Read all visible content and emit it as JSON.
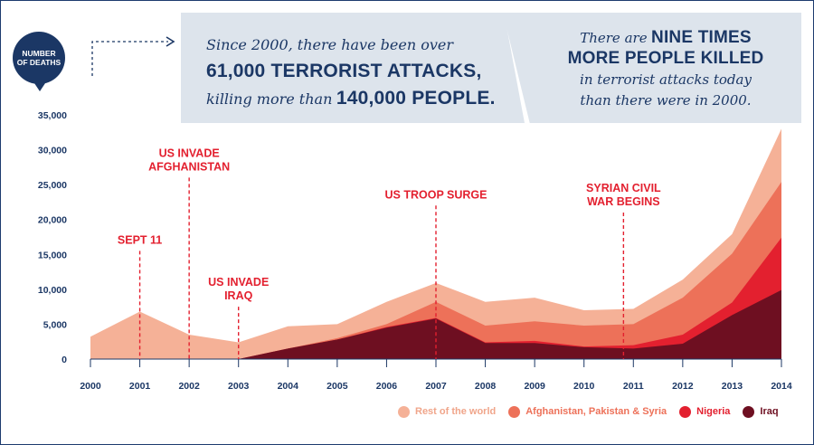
{
  "header": {
    "left_line1": "Since 2000, there have been over",
    "left_line2": "61,000 TERRORIST ATTACKS,",
    "left_line3_italic": "killing more than",
    "left_line3_bold": "140,000 PEOPLE.",
    "right_line1_italic": "There are",
    "right_line1_bold": "NINE TIMES",
    "right_line2": "MORE PEOPLE KILLED",
    "right_line3": "in terrorist attacks today",
    "right_line4": "than there were in 2000."
  },
  "colors": {
    "rest": "#f5b197",
    "afpaksy": "#ed7159",
    "nigeria": "#e3202f",
    "iraq": "#6e0f21",
    "axis": "#1b3765",
    "event": "#e3202f"
  },
  "chart_data": {
    "type": "area",
    "stacked": true,
    "ylabel": "NUMBER OF DEATHS",
    "x": [
      2000,
      2001,
      2002,
      2003,
      2004,
      2005,
      2006,
      2007,
      2008,
      2009,
      2010,
      2011,
      2012,
      2013,
      2014
    ],
    "ylim": [
      0,
      35000
    ],
    "yticks": [
      0,
      5000,
      10000,
      15000,
      20000,
      25000,
      30000,
      35000
    ],
    "ytick_labels": [
      "0",
      "5,000",
      "10,000",
      "15,000",
      "20,000",
      "25,000",
      "30,000",
      "35,000"
    ],
    "series": [
      {
        "name": "Iraq",
        "color": "#6e0f21",
        "values": [
          0,
          0,
          0,
          0,
          1500,
          2800,
          4500,
          5800,
          2300,
          2300,
          1700,
          1500,
          2200,
          6300,
          9900
        ]
      },
      {
        "name": "Nigeria",
        "color": "#e3202f",
        "values": [
          0,
          0,
          0,
          0,
          0,
          0,
          100,
          100,
          100,
          300,
          100,
          500,
          1300,
          1800,
          7500
        ]
      },
      {
        "name": "Afghanistan, Pakistan & Syria",
        "color": "#ed7159",
        "values": [
          0,
          0,
          0,
          0,
          0,
          200,
          400,
          2300,
          2400,
          2800,
          3000,
          3000,
          5300,
          7000,
          8000
        ]
      },
      {
        "name": "Rest of the world",
        "color": "#f5b197",
        "values": [
          3200,
          6800,
          3500,
          2400,
          3200,
          2000,
          3200,
          2700,
          3400,
          3400,
          2200,
          2200,
          2600,
          2800,
          7600
        ]
      }
    ],
    "legend_order": [
      "Rest of the world",
      "Afghanistan, Pakistan & Syria",
      "Nigeria",
      "Iraq"
    ],
    "events": [
      {
        "year": 2001,
        "top": 15500,
        "lines": [
          "SEPT 11"
        ]
      },
      {
        "year": 2002,
        "top": 26000,
        "lines": [
          "US INVADE",
          "AFGHANISTAN"
        ]
      },
      {
        "year": 2003,
        "top": 7500,
        "lines": [
          "US INVADE",
          "IRAQ"
        ]
      },
      {
        "year": 2007,
        "top": 22000,
        "lines": [
          "US TROOP SURGE"
        ]
      },
      {
        "year": 2010.8,
        "top": 21000,
        "lines": [
          "SYRIAN CIVIL",
          "WAR BEGINS"
        ]
      }
    ]
  }
}
